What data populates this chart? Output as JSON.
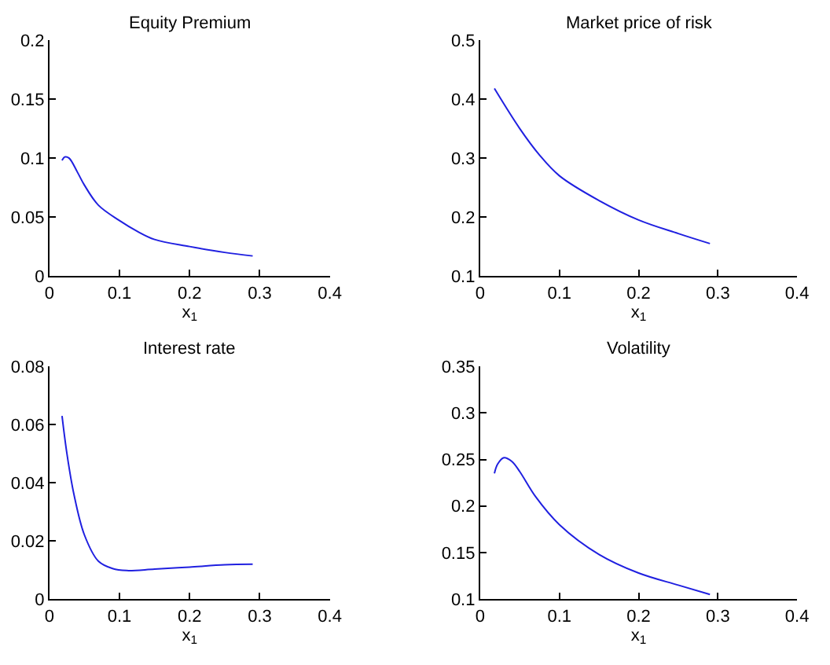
{
  "chart_data": [
    {
      "type": "line",
      "title": "Equity Premium",
      "xlabel": "x$_{1}$",
      "xlim": [
        0,
        0.4
      ],
      "xticks": [
        0,
        0.1,
        0.2,
        0.3,
        0.4
      ],
      "ylim": [
        0,
        0.2
      ],
      "yticks": [
        0,
        0.05,
        0.1,
        0.15,
        0.2
      ],
      "series": [
        {
          "color": "#2020e0",
          "x": [
            0.018,
            0.022,
            0.028,
            0.04,
            0.05,
            0.07,
            0.1,
            0.125,
            0.15,
            0.2,
            0.25,
            0.29
          ],
          "values": [
            0.098,
            0.101,
            0.1,
            0.088,
            0.077,
            0.06,
            0.047,
            0.038,
            0.031,
            0.025,
            0.02,
            0.017
          ]
        }
      ]
    },
    {
      "type": "line",
      "title": "Market price of risk",
      "xlabel": "x$_{1}$",
      "xlim": [
        0,
        0.4
      ],
      "xticks": [
        0,
        0.1,
        0.2,
        0.3,
        0.4
      ],
      "ylim": [
        0.1,
        0.5
      ],
      "yticks": [
        0.1,
        0.2,
        0.3,
        0.4,
        0.5
      ],
      "series": [
        {
          "color": "#2020e0",
          "x": [
            0.018,
            0.05,
            0.075,
            0.1,
            0.15,
            0.2,
            0.25,
            0.29
          ],
          "values": [
            0.418,
            0.35,
            0.305,
            0.27,
            0.228,
            0.195,
            0.172,
            0.155
          ]
        }
      ]
    },
    {
      "type": "line",
      "title": "Interest rate",
      "xlabel": "x$_{1}$",
      "xlim": [
        0,
        0.4
      ],
      "xticks": [
        0,
        0.1,
        0.2,
        0.3,
        0.4
      ],
      "ylim": [
        0,
        0.08
      ],
      "yticks": [
        0,
        0.02,
        0.04,
        0.06,
        0.08
      ],
      "series": [
        {
          "color": "#2020e0",
          "x": [
            0.018,
            0.025,
            0.035,
            0.05,
            0.07,
            0.09,
            0.11,
            0.15,
            0.2,
            0.25,
            0.29
          ],
          "values": [
            0.063,
            0.05,
            0.036,
            0.022,
            0.013,
            0.0105,
            0.0098,
            0.0103,
            0.011,
            0.0118,
            0.012
          ]
        }
      ]
    },
    {
      "type": "line",
      "title": "Volatility",
      "xlabel": "x$_{1}$",
      "xlim": [
        0,
        0.4
      ],
      "xticks": [
        0,
        0.1,
        0.2,
        0.3,
        0.4
      ],
      "ylim": [
        0.1,
        0.35
      ],
      "yticks": [
        0.1,
        0.15,
        0.2,
        0.25,
        0.3,
        0.35
      ],
      "series": [
        {
          "color": "#2020e0",
          "x": [
            0.018,
            0.022,
            0.03,
            0.04,
            0.05,
            0.07,
            0.1,
            0.15,
            0.2,
            0.25,
            0.29
          ],
          "values": [
            0.235,
            0.245,
            0.252,
            0.248,
            0.237,
            0.21,
            0.18,
            0.148,
            0.128,
            0.115,
            0.105
          ]
        }
      ]
    }
  ]
}
